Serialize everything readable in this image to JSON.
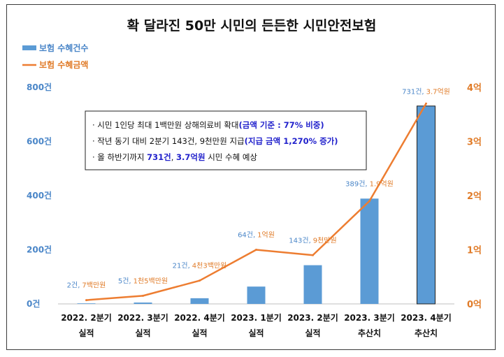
{
  "chart_data": {
    "type": "bar+line",
    "title": "확 달라진 50만 시민의 든든한 시민안전보험",
    "categories": [
      [
        "2022. 2분기",
        "실적"
      ],
      [
        "2022. 3분기",
        "실적"
      ],
      [
        "2022. 4분기",
        "실적"
      ],
      [
        "2023. 1분기",
        "실적"
      ],
      [
        "2023. 2분기",
        "실적"
      ],
      [
        "2023. 3분기",
        "추산치"
      ],
      [
        "2023. 4분기",
        "추산치"
      ]
    ],
    "series": [
      {
        "name": "보험 수혜건수",
        "type": "bar",
        "axis": "left",
        "color": "#5b9bd5",
        "values": [
          2,
          5,
          21,
          64,
          143,
          389,
          731
        ],
        "count_labels": [
          "2건,",
          "5건,",
          "21건,",
          "64건,",
          "143건,",
          "389건,",
          "731건,"
        ]
      },
      {
        "name": "보험 수혜금액",
        "type": "line",
        "axis": "right",
        "color": "#ed7d31",
        "values": [
          0.07,
          0.15,
          0.43,
          1.0,
          0.9,
          1.9,
          3.7
        ],
        "amount_labels": [
          "7백만원",
          "1천5백만원",
          "4천3백만원",
          "1억원",
          "9천만원",
          "1.9억원",
          "3.7억원"
        ]
      }
    ],
    "left_axis": {
      "ylim": [
        0,
        800
      ],
      "ticks": [
        "0건",
        "200건",
        "400건",
        "600건",
        "800건"
      ],
      "tick_values": [
        0,
        200,
        400,
        600,
        800
      ]
    },
    "right_axis": {
      "ylim": [
        0,
        4
      ],
      "ticks": [
        "0억",
        "1억",
        "2억",
        "3억",
        "4억"
      ],
      "tick_values": [
        0,
        1,
        2,
        3,
        4
      ]
    },
    "legend": {
      "placement": "top-left",
      "items": [
        "보험 수혜건수",
        "보험 수혜금액"
      ]
    },
    "grid": false,
    "annotations": [
      [
        {
          "t": "· 시민 1인당 최대 1백만원 상해의료비 확대",
          "hl": false
        },
        {
          "t": "(금액 기준 : 77% 비중)",
          "hl": true
        }
      ],
      [
        {
          "t": "· 작년 동기 대비 2분기 143건, 9천만원 지급",
          "hl": false
        },
        {
          "t": "(지급 금액 1,270% 증가)",
          "hl": true
        }
      ],
      [
        {
          "t": "· 올 하반기까지 ",
          "hl": false
        },
        {
          "t": "731건",
          "hl": true
        },
        {
          "t": ", ",
          "hl": false
        },
        {
          "t": "3.7억원",
          "hl": true
        },
        {
          "t": " 시민 수혜 예상",
          "hl": false
        }
      ]
    ]
  }
}
